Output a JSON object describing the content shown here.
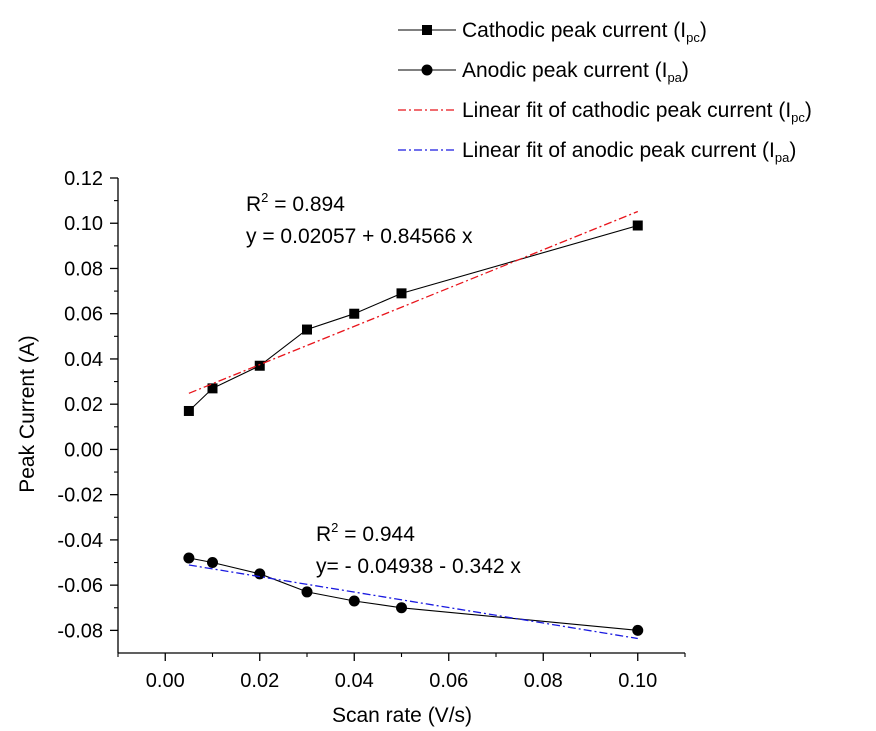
{
  "chart_data": {
    "type": "line",
    "xlabel": "Scan rate (V/s)",
    "ylabel": "Peak Current (A)",
    "xlim": [
      -0.01,
      0.11
    ],
    "ylim": [
      -0.09,
      0.12
    ],
    "x_ticks": [
      "0.00",
      "0.02",
      "0.04",
      "0.06",
      "0.08",
      "0.10"
    ],
    "y_ticks": [
      "0.12",
      "0.10",
      "0.08",
      "0.06",
      "0.04",
      "0.02",
      "0.00",
      "-0.02",
      "-0.04",
      "-0.06",
      "-0.08"
    ],
    "x_tick_values": [
      0,
      0.02,
      0.04,
      0.06,
      0.08,
      0.1
    ],
    "y_tick_values": [
      0.12,
      0.1,
      0.08,
      0.06,
      0.04,
      0.02,
      0.0,
      -0.02,
      -0.04,
      -0.06,
      -0.08
    ],
    "grid": false,
    "legend_position": "top-right",
    "series": [
      {
        "name": "Cathodic peak current (I_pc)",
        "legend_main": "Cathodic peak current (I",
        "legend_sub": "pc",
        "legend_tail": ")",
        "marker": "square",
        "color": "#000000",
        "x": [
          0.005,
          0.01,
          0.02,
          0.03,
          0.04,
          0.05,
          0.1
        ],
        "y": [
          0.017,
          0.027,
          0.037,
          0.053,
          0.06,
          0.069,
          0.099
        ]
      },
      {
        "name": "Anodic peak current (I_pa)",
        "legend_main": "Anodic peak current (I",
        "legend_sub": "pa",
        "legend_tail": ")",
        "marker": "circle",
        "color": "#000000",
        "x": [
          0.005,
          0.01,
          0.02,
          0.03,
          0.04,
          0.05,
          0.1
        ],
        "y": [
          -0.048,
          -0.05,
          -0.055,
          -0.063,
          -0.067,
          -0.07,
          -0.08
        ]
      },
      {
        "name": "Linear fit of cathodic peak current (I_pc)",
        "legend_main": "Linear fit of cathodic peak current (I",
        "legend_sub": "pc",
        "legend_tail": ")",
        "style": "dash-dot",
        "color": "#e8141b",
        "x": [
          0.005,
          0.1
        ],
        "y": [
          0.0248,
          0.1052
        ]
      },
      {
        "name": "Linear fit of anodic peak current (I_pa)",
        "legend_main": "Linear fit of anodic peak current (I",
        "legend_sub": "pa",
        "legend_tail": ")",
        "style": "dash-dot",
        "color": "#1a1ae0",
        "x": [
          0.005,
          0.1
        ],
        "y": [
          -0.0511,
          -0.0836
        ]
      }
    ],
    "annotations": [
      {
        "r2_label": "R",
        "r2_sup": "2",
        "r2_value": " = 0.894",
        "equation": "y = 0.02057 + 0.84566 x"
      },
      {
        "r2_label": "R",
        "r2_sup": "2",
        "r2_value": " = 0.944",
        "equation": "y= - 0.04938 - 0.342 x"
      }
    ]
  }
}
